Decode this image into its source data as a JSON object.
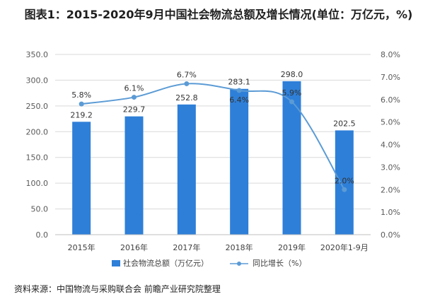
{
  "title": "图表1：2015-2020年9月中国社会物流总额及增长情况(单位：万亿元，%)",
  "source": "资料来源：中国物流与采购联合会 前瞻产业研究院整理",
  "colors": {
    "bar": "#2E7FD8",
    "line": "#5B9BD5",
    "grid": "#D9D9D9",
    "axis_text": "#595959"
  },
  "chart_data": {
    "type": "bar",
    "categories": [
      "2015年",
      "2016年",
      "2017年",
      "2018年",
      "2019年",
      "2020年1-9月"
    ],
    "series": [
      {
        "name": "社会物流总额（万亿元）",
        "type": "bar",
        "axis": "left",
        "values": [
          219.2,
          229.7,
          252.8,
          283.1,
          298.0,
          202.5
        ],
        "labels": [
          "219.2",
          "229.7",
          "252.8",
          "283.1",
          "298.0",
          "202.5"
        ]
      },
      {
        "name": "同比增长（%）",
        "type": "line",
        "axis": "right",
        "values": [
          5.8,
          6.1,
          6.7,
          6.4,
          5.9,
          2.0
        ],
        "labels": [
          "5.8%",
          "6.1%",
          "6.7%",
          "6.4%",
          "5.9%",
          "2.0%"
        ]
      }
    ],
    "y_left": {
      "min": 0,
      "max": 350,
      "ticks": [
        "0.0",
        "50.0",
        "100.0",
        "150.0",
        "200.0",
        "250.0",
        "300.0",
        "350.0"
      ]
    },
    "y_right": {
      "min": 0,
      "max": 8,
      "ticks": [
        "0.0%",
        "1.0%",
        "2.0%",
        "3.0%",
        "4.0%",
        "5.0%",
        "6.0%",
        "7.0%",
        "8.0%"
      ]
    },
    "grid": true,
    "legend": "bottom"
  }
}
